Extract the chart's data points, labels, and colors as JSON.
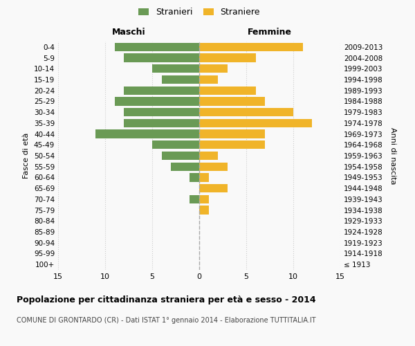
{
  "age_groups": [
    "100+",
    "95-99",
    "90-94",
    "85-89",
    "80-84",
    "75-79",
    "70-74",
    "65-69",
    "60-64",
    "55-59",
    "50-54",
    "45-49",
    "40-44",
    "35-39",
    "30-34",
    "25-29",
    "20-24",
    "15-19",
    "10-14",
    "5-9",
    "0-4"
  ],
  "birth_years": [
    "≤ 1913",
    "1914-1918",
    "1919-1923",
    "1924-1928",
    "1929-1933",
    "1934-1938",
    "1939-1943",
    "1944-1948",
    "1949-1953",
    "1954-1958",
    "1959-1963",
    "1964-1968",
    "1969-1973",
    "1974-1978",
    "1979-1983",
    "1984-1988",
    "1989-1993",
    "1994-1998",
    "1999-2003",
    "2004-2008",
    "2009-2013"
  ],
  "maschi": [
    0,
    0,
    0,
    0,
    0,
    0,
    1,
    0,
    1,
    3,
    4,
    5,
    11,
    8,
    8,
    9,
    8,
    4,
    5,
    8,
    9
  ],
  "femmine": [
    0,
    0,
    0,
    0,
    0,
    1,
    1,
    3,
    1,
    3,
    2,
    7,
    7,
    12,
    10,
    7,
    6,
    2,
    3,
    6,
    11
  ],
  "male_color": "#6a9a55",
  "female_color": "#f0b429",
  "xlim": 15,
  "title": "Popolazione per cittadinanza straniera per età e sesso - 2014",
  "subtitle": "COMUNE DI GRONTARDO (CR) - Dati ISTAT 1° gennaio 2014 - Elaborazione TUTTITALIA.IT",
  "legend_male": "Stranieri",
  "legend_female": "Straniere",
  "maschi_label": "Maschi",
  "femmine_label": "Femmine",
  "fasce_label": "Fasce di età",
  "anni_label": "Anni di nascita",
  "bg_color": "#f9f9f9",
  "grid_color": "#cccccc"
}
